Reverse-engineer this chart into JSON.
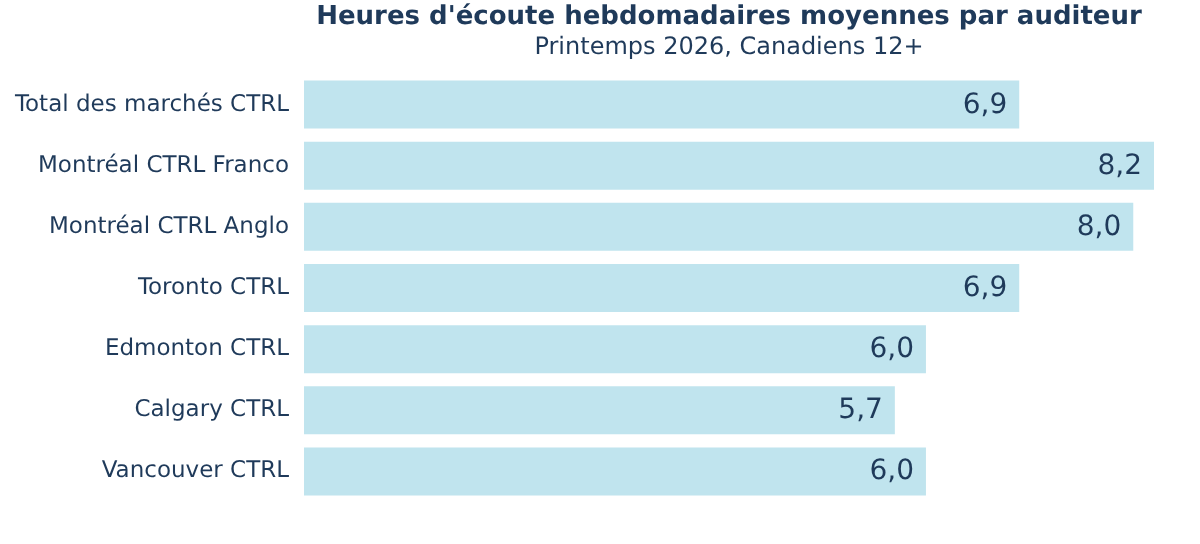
{
  "chart_data": {
    "type": "bar",
    "orientation": "horizontal",
    "title": "Heures d'écoute hebdomadaires moyennes par auditeur",
    "subtitle": "Printemps 2026, Canadiens 12+",
    "categories": [
      "Total des marchés CTRL",
      "Montréal CTRL Franco",
      "Montréal CTRL Anglo",
      "Toronto CTRL",
      "Edmonton CTRL",
      "Calgary CTRL",
      "Vancouver CTRL"
    ],
    "values": [
      6.9,
      8.2,
      8.0,
      6.9,
      6.0,
      5.7,
      6.0
    ],
    "value_labels": [
      "6,9",
      "8,2",
      "8,0",
      "6,9",
      "6,0",
      "5,7",
      "6,0"
    ],
    "color": "#c0e4ee"
  }
}
